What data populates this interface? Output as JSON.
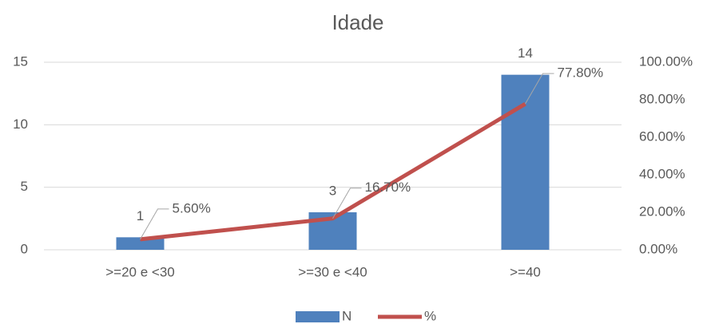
{
  "chart_data": {
    "type": "bar",
    "title": "Idade",
    "categories": [
      ">=20 e <30",
      ">=30 e <40",
      ">=40"
    ],
    "series": [
      {
        "name": "N",
        "type": "bar",
        "color": "#4f81bd",
        "values": [
          1,
          3,
          14
        ]
      },
      {
        "name": "%",
        "type": "line",
        "axis": "y2",
        "color": "#c0504d",
        "values": [
          5.6,
          16.7,
          77.8
        ],
        "value_labels": [
          "5.60%",
          "16.70%",
          "77.80%"
        ]
      }
    ],
    "ylim": [
      0,
      15
    ],
    "yticks": [
      0,
      5,
      10,
      15
    ],
    "y2lim": [
      0,
      100
    ],
    "y2ticks": [
      {
        "value": 0,
        "label": "0.00%"
      },
      {
        "value": 20,
        "label": "20.00%"
      },
      {
        "value": 40,
        "label": "40.00%"
      },
      {
        "value": 60,
        "label": "60.00%"
      },
      {
        "value": 80,
        "label": "80.00%"
      },
      {
        "value": 100,
        "label": "100.00%"
      }
    ],
    "grid": true,
    "legend": "bottom"
  }
}
